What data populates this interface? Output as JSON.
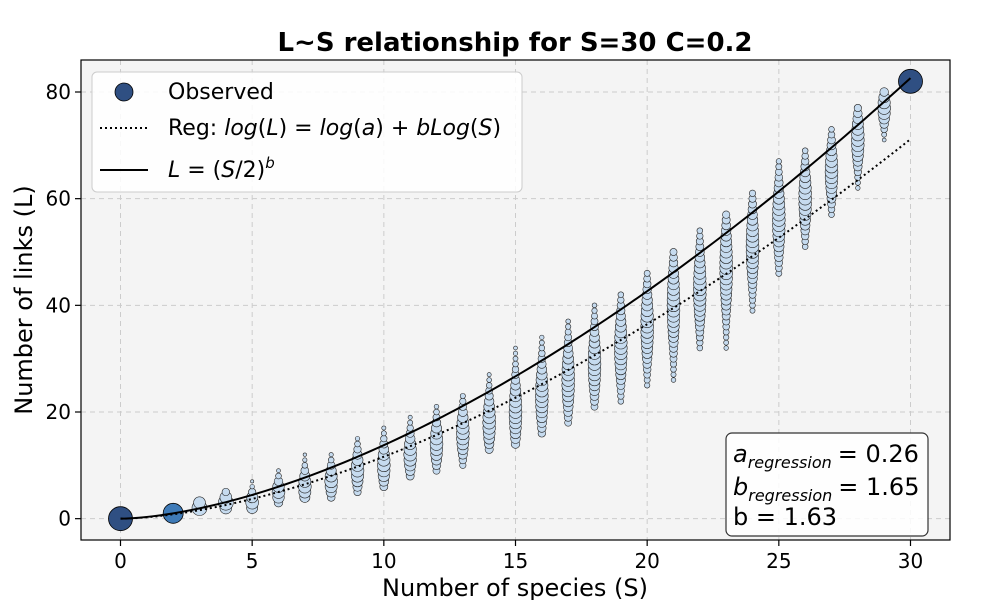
{
  "chart_data": {
    "type": "scatter",
    "title": "L~S relationship for S=30 C=0.2",
    "xlabel": "Number of species (S)",
    "ylabel": "Number of links (L)",
    "xlim": [
      -1.5,
      31.5
    ],
    "ylim": [
      -4,
      86
    ],
    "xticks": [
      0,
      5,
      10,
      15,
      20,
      25,
      30
    ],
    "yticks": [
      0,
      20,
      40,
      60,
      80
    ],
    "grid": true,
    "legend_position": "top-left",
    "legend": {
      "observed": "Observed",
      "regression": "Reg: log(L) = log(a) + bLog(S)",
      "power": "L = (S/2)^b"
    },
    "regression": {
      "a": 0.26,
      "b": 1.65
    },
    "power_law": {
      "b": 1.63
    },
    "annotations": {
      "a_regression": "= 0.26",
      "b_regression": "= 1.65",
      "b": "b = 1.63",
      "a_symbol": "a",
      "b_symbol": "b",
      "subscript": "regression"
    },
    "observed_summary": [
      {
        "S": 0,
        "min": 0,
        "max": 0,
        "mode": 0
      },
      {
        "S": 2,
        "min": 1,
        "max": 1,
        "mode": 1
      },
      {
        "S": 3,
        "min": 2,
        "max": 3,
        "mode": 2
      },
      {
        "S": 4,
        "min": 2,
        "max": 5,
        "mode": 3
      },
      {
        "S": 5,
        "min": 2,
        "max": 7,
        "mode": 3
      },
      {
        "S": 6,
        "min": 3,
        "max": 9,
        "mode": 5
      },
      {
        "S": 7,
        "min": 4,
        "max": 12,
        "mode": 6
      },
      {
        "S": 8,
        "min": 4,
        "max": 12,
        "mode": 7
      },
      {
        "S": 9,
        "min": 5,
        "max": 15,
        "mode": 9
      },
      {
        "S": 10,
        "min": 6,
        "max": 17,
        "mode": 10
      },
      {
        "S": 11,
        "min": 8,
        "max": 19,
        "mode": 12
      },
      {
        "S": 12,
        "min": 9,
        "max": 21,
        "mode": 14
      },
      {
        "S": 13,
        "min": 10,
        "max": 23,
        "mode": 16
      },
      {
        "S": 14,
        "min": 13,
        "max": 27,
        "mode": 18
      },
      {
        "S": 15,
        "min": 14,
        "max": 32,
        "mode": 20
      },
      {
        "S": 16,
        "min": 16,
        "max": 34,
        "mode": 23
      },
      {
        "S": 17,
        "min": 18,
        "max": 37,
        "mode": 26
      },
      {
        "S": 18,
        "min": 21,
        "max": 40,
        "mode": 29
      },
      {
        "S": 19,
        "min": 22,
        "max": 42,
        "mode": 32
      },
      {
        "S": 20,
        "min": 25,
        "max": 46,
        "mode": 36
      },
      {
        "S": 21,
        "min": 26,
        "max": 50,
        "mode": 40
      },
      {
        "S": 22,
        "min": 32,
        "max": 54,
        "mode": 43
      },
      {
        "S": 23,
        "min": 32,
        "max": 57,
        "mode": 47
      },
      {
        "S": 24,
        "min": 39,
        "max": 61,
        "mode": 51
      },
      {
        "S": 25,
        "min": 46,
        "max": 67,
        "mode": 56
      },
      {
        "S": 26,
        "min": 51,
        "max": 69,
        "mode": 60
      },
      {
        "S": 27,
        "min": 57,
        "max": 73,
        "mode": 65
      },
      {
        "S": 28,
        "min": 62,
        "max": 77,
        "mode": 71
      },
      {
        "S": 29,
        "min": 71,
        "max": 80,
        "mode": 77
      },
      {
        "S": 30,
        "min": 82,
        "max": 82,
        "mode": 82
      }
    ],
    "colors": {
      "background": "#f4f4f4",
      "grid": "#cccccc",
      "dark_marker": "#2f4f82",
      "mid_marker": "#3f7bb8",
      "light_marker": "#c6dbef",
      "line": "#000000"
    }
  }
}
